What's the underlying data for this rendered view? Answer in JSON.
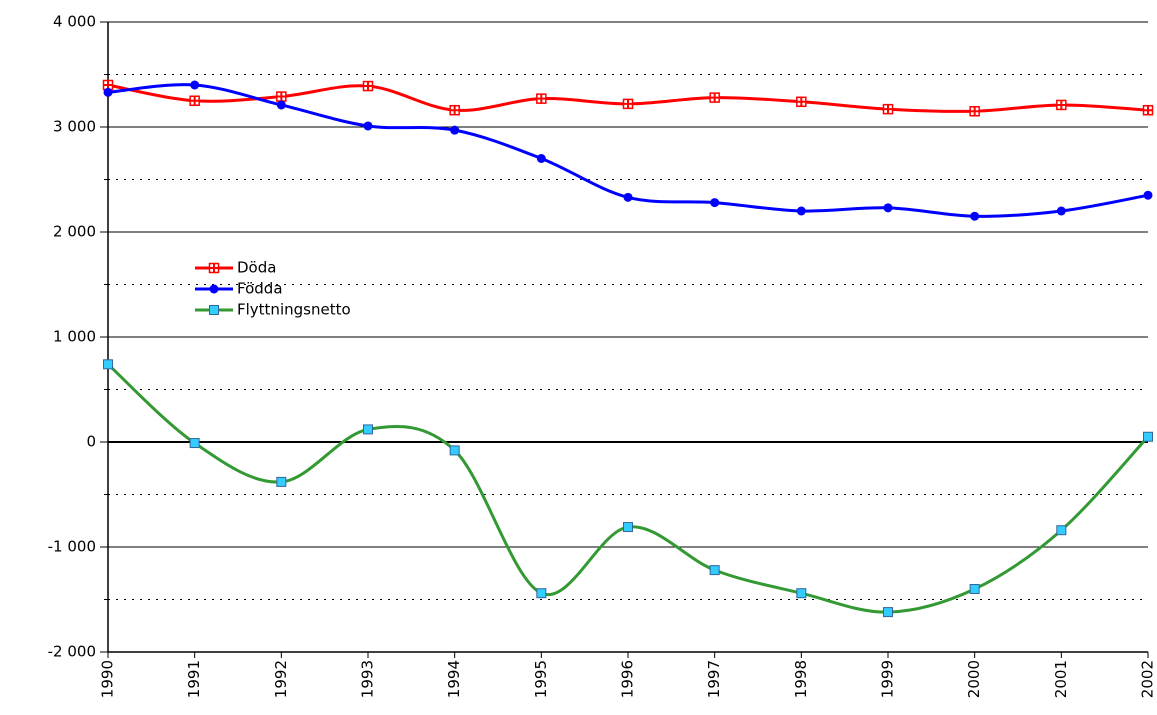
{
  "chart_data": {
    "type": "line",
    "categories": [
      "1990",
      "1991",
      "1992",
      "1993",
      "1994",
      "1995",
      "1996",
      "1997",
      "1998",
      "1999",
      "2000",
      "2001",
      "2002"
    ],
    "series": [
      {
        "name": "Döda",
        "color": "#ff0000",
        "marker": "cross-square",
        "values": [
          3400,
          3250,
          3290,
          3390,
          3160,
          3270,
          3220,
          3280,
          3240,
          3170,
          3150,
          3210,
          3160
        ]
      },
      {
        "name": "Födda",
        "color": "#0000ff",
        "marker": "circle",
        "values": [
          3330,
          3400,
          3210,
          3010,
          2970,
          2700,
          2330,
          2280,
          2200,
          2230,
          2150,
          2200,
          2350
        ]
      },
      {
        "name": "Flyttningsnetto",
        "color": "#339933",
        "marker": "square",
        "marker_color": "#33ccff",
        "values": [
          740,
          -10,
          -380,
          120,
          -80,
          -1440,
          -810,
          -1220,
          -1440,
          -1620,
          -1400,
          -840,
          50
        ]
      }
    ],
    "ylim": [
      -2000,
      4000
    ],
    "yticks": [
      {
        "value": -2000,
        "label": "-2 000"
      },
      {
        "value": -1000,
        "label": "-1 000"
      },
      0,
      {
        "value": 1000,
        "label": "1 000"
      },
      {
        "value": 2000,
        "label": "2 000"
      },
      {
        "value": 3000,
        "label": "3 000"
      },
      {
        "value": 4000,
        "label": "4 000"
      }
    ],
    "minor_yticks": [
      -1500,
      -500,
      500,
      1500,
      2500,
      3500
    ],
    "grid": true,
    "smooth": true,
    "legend": "left"
  }
}
